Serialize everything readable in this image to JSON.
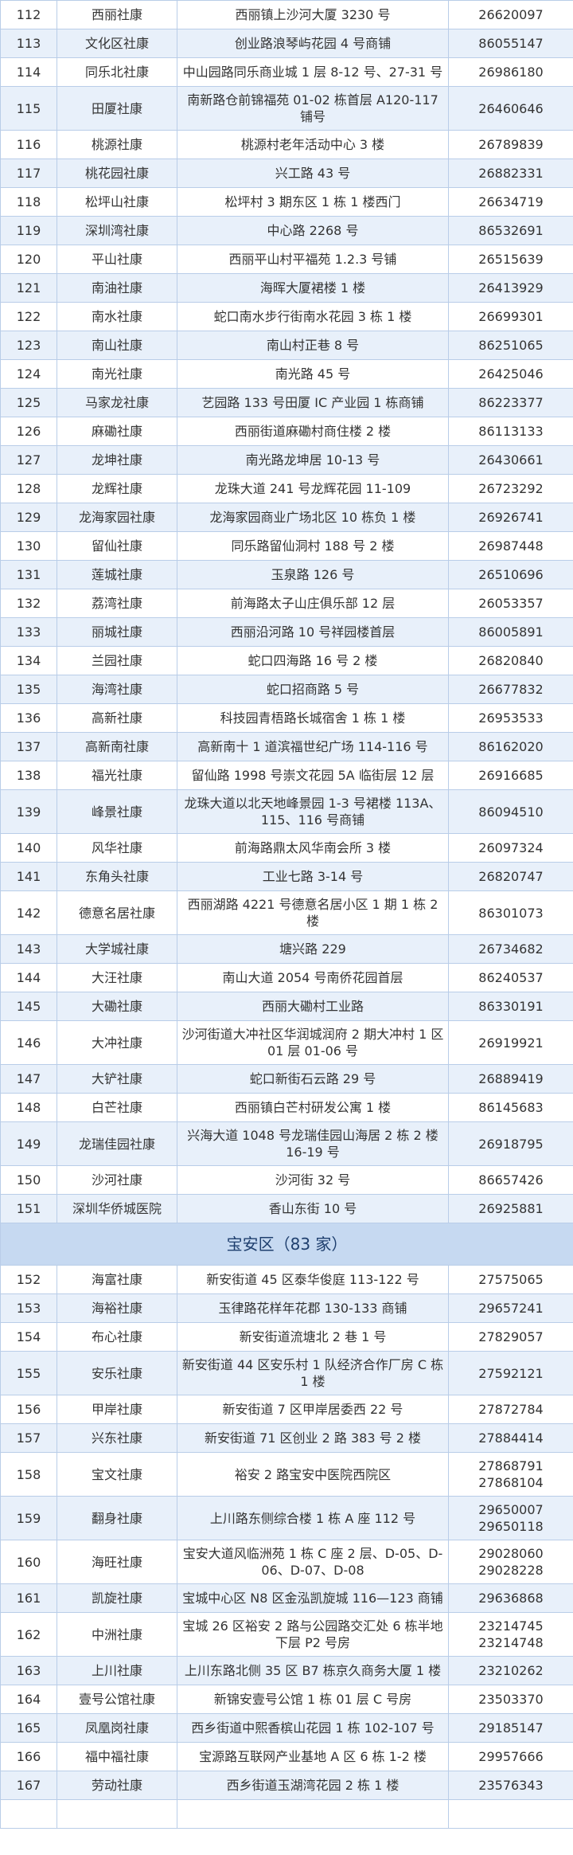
{
  "sections": [
    {
      "rows": [
        [
          "112",
          "西丽社康",
          "西丽镇上沙河大厦 3230 号",
          [
            "26620097"
          ]
        ],
        [
          "113",
          "文化区社康",
          "创业路浪琴屿花园 4 号商铺",
          [
            "86055147"
          ]
        ],
        [
          "114",
          "同乐北社康",
          "中山园路同乐商业城 1 层 8-12 号、27-31 号",
          [
            "26986180"
          ]
        ],
        [
          "115",
          "田厦社康",
          "南新路仓前锦福苑 01-02 栋首层 A120-117 铺号",
          [
            "26460646"
          ]
        ],
        [
          "116",
          "桃源社康",
          "桃源村老年活动中心 3 楼",
          [
            "26789839"
          ]
        ],
        [
          "117",
          "桃花园社康",
          "兴工路 43 号",
          [
            "26882331"
          ]
        ],
        [
          "118",
          "松坪山社康",
          "松坪村 3 期东区 1 栋 1 楼西门",
          [
            "26634719"
          ]
        ],
        [
          "119",
          "深圳湾社康",
          "中心路 2268 号",
          [
            "86532691"
          ]
        ],
        [
          "120",
          "平山社康",
          "西丽平山村平福苑 1.2.3 号铺",
          [
            "26515639"
          ]
        ],
        [
          "121",
          "南油社康",
          "海晖大厦裙楼 1 楼",
          [
            "26413929"
          ]
        ],
        [
          "122",
          "南水社康",
          "蛇口南水步行街南水花园 3 栋 1 楼",
          [
            "26699301"
          ]
        ],
        [
          "123",
          "南山社康",
          "南山村正巷 8 号",
          [
            "86251065"
          ]
        ],
        [
          "124",
          "南光社康",
          "南光路 45 号",
          [
            "26425046"
          ]
        ],
        [
          "125",
          "马家龙社康",
          "艺园路 133 号田厦 IC 产业园 1 栋商铺",
          [
            "86223377"
          ]
        ],
        [
          "126",
          "麻磡社康",
          "西丽街道麻磡村商住楼 2 楼",
          [
            "86113133"
          ]
        ],
        [
          "127",
          "龙坤社康",
          "南光路龙坤居 10-13 号",
          [
            "26430661"
          ]
        ],
        [
          "128",
          "龙辉社康",
          "龙珠大道 241 号龙辉花园 11-109",
          [
            "26723292"
          ]
        ],
        [
          "129",
          "龙海家园社康",
          "龙海家园商业广场北区 10 栋负 1 楼",
          [
            "26926741"
          ]
        ],
        [
          "130",
          "留仙社康",
          "同乐路留仙洞村 188 号 2 楼",
          [
            "26987448"
          ]
        ],
        [
          "131",
          "莲城社康",
          "玉泉路 126 号",
          [
            "26510696"
          ]
        ],
        [
          "132",
          "荔湾社康",
          "前海路太子山庄俱乐部 12 层",
          [
            "26053357"
          ]
        ],
        [
          "133",
          "丽城社康",
          "西丽沿河路 10 号祥园楼首层",
          [
            "86005891"
          ]
        ],
        [
          "134",
          "兰园社康",
          "蛇口四海路 16 号 2 楼",
          [
            "26820840"
          ]
        ],
        [
          "135",
          "海湾社康",
          "蛇口招商路 5 号",
          [
            "26677832"
          ]
        ],
        [
          "136",
          "高新社康",
          "科技园青梧路长城宿舍 1 栋 1 楼",
          [
            "26953533"
          ]
        ],
        [
          "137",
          "高新南社康",
          "高新南十 1 道滨福世纪广场 114-116 号",
          [
            "86162020"
          ]
        ],
        [
          "138",
          "福光社康",
          "留仙路 1998 号崇文花园 5A 临街层 12 层",
          [
            "26916685"
          ]
        ],
        [
          "139",
          "峰景社康",
          "龙珠大道以北天地峰景园 1-3 号裙楼 113A、115、116 号商铺",
          [
            "86094510"
          ]
        ],
        [
          "140",
          "风华社康",
          "前海路鼎太风华南会所 3 楼",
          [
            "26097324"
          ]
        ],
        [
          "141",
          "东角头社康",
          "工业七路 3-14 号",
          [
            "26820747"
          ]
        ],
        [
          "142",
          "德意名居社康",
          "西丽湖路 4221 号德意名居小区 1 期 1 栋 2 楼",
          [
            "86301073"
          ]
        ],
        [
          "143",
          "大学城社康",
          "塘兴路 229",
          [
            "26734682"
          ]
        ],
        [
          "144",
          "大汪社康",
          "南山大道 2054 号南侨花园首层",
          [
            "86240537"
          ]
        ],
        [
          "145",
          "大磡社康",
          "西丽大磡村工业路",
          [
            "86330191"
          ]
        ],
        [
          "146",
          "大冲社康",
          "沙河街道大冲社区华润城润府 2 期大冲村 1 区 01 层 01-06 号",
          [
            "26919921"
          ]
        ],
        [
          "147",
          "大铲社康",
          "蛇口新街石云路 29 号",
          [
            "26889419"
          ]
        ],
        [
          "148",
          "白芒社康",
          "西丽镇白芒村研发公寓 1 楼",
          [
            "86145683"
          ]
        ],
        [
          "149",
          "龙瑞佳园社康",
          "兴海大道 1048 号龙瑞佳园山海居 2 栋 2 楼 16-19 号",
          [
            "26918795"
          ]
        ],
        [
          "150",
          "沙河社康",
          "沙河街 32 号",
          [
            "86657426"
          ]
        ],
        [
          "151",
          "深圳华侨城医院",
          "香山东街 10 号",
          [
            "26925881"
          ]
        ]
      ]
    },
    {
      "title": "宝安区（83 家）",
      "rows": [
        [
          "152",
          "海富社康",
          "新安街道 45 区泰华俊庭 113-122 号",
          [
            "27575065"
          ]
        ],
        [
          "153",
          "海裕社康",
          "玉律路花样年花郡 130-133 商铺",
          [
            "29657241"
          ]
        ],
        [
          "154",
          "布心社康",
          "新安街道流塘北 2 巷 1 号",
          [
            "27829057"
          ]
        ],
        [
          "155",
          "安乐社康",
          "新安街道 44 区安乐村 1 队经济合作厂房 C 栋 1 楼",
          [
            "27592121"
          ]
        ],
        [
          "156",
          "甲岸社康",
          "新安街道 7 区甲岸居委西 22 号",
          [
            "27872784"
          ]
        ],
        [
          "157",
          "兴东社康",
          "新安街道 71 区创业 2 路 383 号 2 楼",
          [
            "27884414"
          ]
        ],
        [
          "158",
          "宝文社康",
          "裕安 2 路宝安中医院西院区",
          [
            "27868791",
            "27868104"
          ]
        ],
        [
          "159",
          "翻身社康",
          "上川路东侧综合楼 1 栋 A 座 112 号",
          [
            "29650007",
            "29650118"
          ]
        ],
        [
          "160",
          "海旺社康",
          "宝安大道风临洲苑 1 栋 C 座 2 层、D-05、D-06、D-07、D-08",
          [
            "29028060",
            "29028228"
          ]
        ],
        [
          "161",
          "凯旋社康",
          "宝城中心区 N8 区金泓凯旋城 116—123 商铺",
          [
            "29636868"
          ]
        ],
        [
          "162",
          "中洲社康",
          "宝城 26 区裕安 2 路与公园路交汇处 6 栋半地下层 P2 号房",
          [
            "23214745",
            "23214748"
          ]
        ],
        [
          "163",
          "上川社康",
          "上川东路北侧 35 区 B7 栋京久商务大厦 1 楼",
          [
            "23210262"
          ]
        ],
        [
          "164",
          "壹号公馆社康",
          "新锦安壹号公馆 1 栋 01 层 C 号房",
          [
            "23503370"
          ]
        ],
        [
          "165",
          "凤凰岗社康",
          "西乡街道中熙香槟山花园 1 栋 102-107 号",
          [
            "29185147"
          ]
        ],
        [
          "166",
          "福中福社康",
          "宝源路互联网产业基地 A 区 6 栋 1-2 楼",
          [
            "29957666"
          ]
        ],
        [
          "167",
          "劳动社康",
          "西乡街道玉湖湾花园 2 栋 1 楼",
          [
            "23576343"
          ]
        ]
      ]
    }
  ]
}
